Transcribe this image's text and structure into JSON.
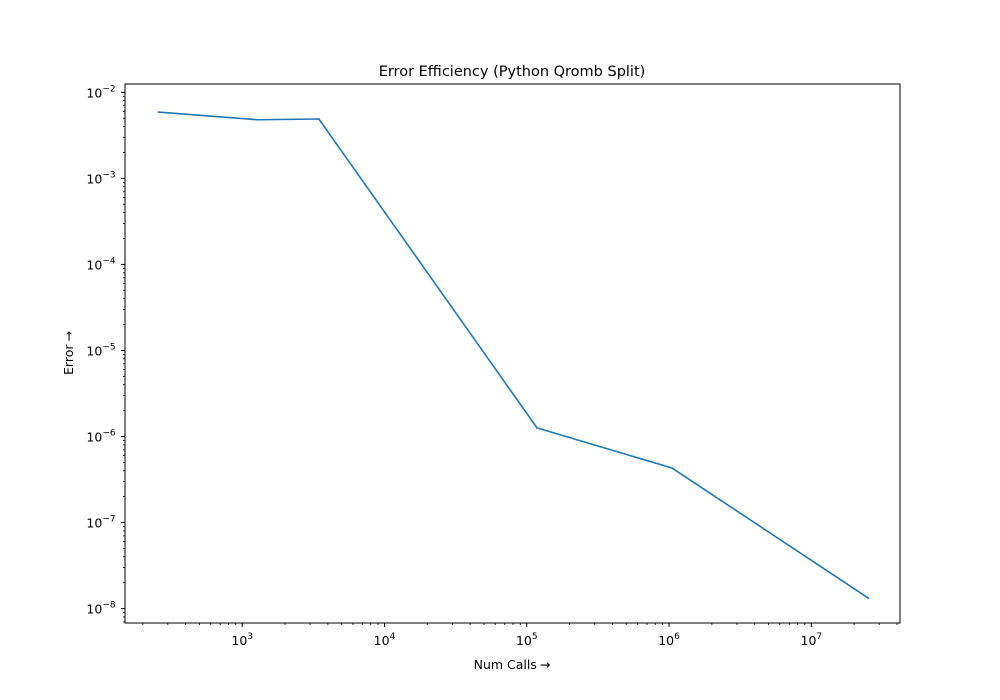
{
  "chart_data": {
    "type": "line",
    "title": "Error Efficiency (Python Qromb Split)",
    "xlabel": "Num Calls",
    "ylabel": "Error",
    "axis_label_arrow": "→",
    "x_scale": "log",
    "y_scale": "log",
    "xlim": [
      150,
      42000000
    ],
    "ylim": [
      6.8e-09,
      0.0125
    ],
    "x_ticks": [
      {
        "value": 1000,
        "base": "10",
        "exp": "3"
      },
      {
        "value": 10000,
        "base": "10",
        "exp": "4"
      },
      {
        "value": 100000,
        "base": "10",
        "exp": "5"
      },
      {
        "value": 1000000,
        "base": "10",
        "exp": "6"
      },
      {
        "value": 10000000,
        "base": "10",
        "exp": "7"
      }
    ],
    "y_ticks": [
      {
        "value": 1e-08,
        "base": "10",
        "exp": "−8"
      },
      {
        "value": 1e-07,
        "base": "10",
        "exp": "−7"
      },
      {
        "value": 1e-06,
        "base": "10",
        "exp": "−6"
      },
      {
        "value": 1e-05,
        "base": "10",
        "exp": "−5"
      },
      {
        "value": 0.0001,
        "base": "10",
        "exp": "−4"
      },
      {
        "value": 0.001,
        "base": "10",
        "exp": "−3"
      },
      {
        "value": 0.01,
        "base": "10",
        "exp": "−2"
      }
    ],
    "grid": false,
    "series": [
      {
        "color": "#1f77b4",
        "x": [
          257,
          1281,
          3457,
          118000,
          1050000,
          25200000
        ],
        "y": [
          0.0059,
          0.0048,
          0.0049,
          1.26e-06,
          4.3e-07,
          1.32e-08
        ]
      }
    ]
  }
}
